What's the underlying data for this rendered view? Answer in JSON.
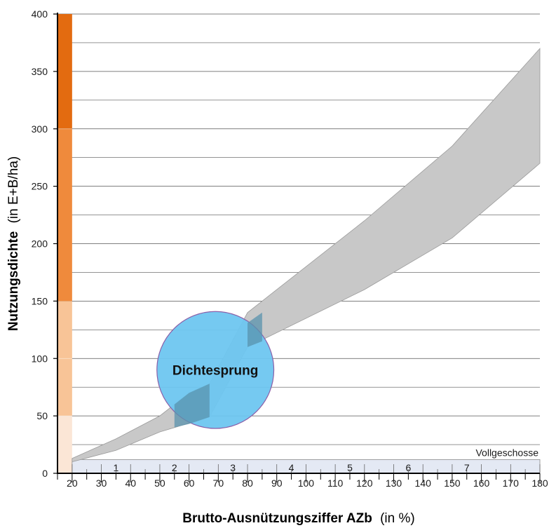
{
  "chart_data": {
    "type": "area",
    "title": "",
    "xlabel": {
      "bold": "Brutto-Ausnützungsziffer AZb",
      "unit": "(in %)"
    },
    "ylabel": {
      "bold": "Nutzungsdichte",
      "unit": "(in E+B/ha)"
    },
    "xlim": [
      15,
      180
    ],
    "ylim": [
      0,
      400
    ],
    "x_ticks": [
      20,
      30,
      40,
      50,
      60,
      70,
      80,
      90,
      100,
      110,
      120,
      130,
      140,
      150,
      160,
      170,
      180
    ],
    "y_ticks": [
      0,
      50,
      100,
      150,
      200,
      250,
      300,
      350,
      400
    ],
    "grid": true,
    "band": {
      "lower": [
        [
          20,
          10
        ],
        [
          35,
          20
        ],
        [
          50,
          36
        ],
        [
          67,
          49
        ],
        [
          80,
          110
        ],
        [
          120,
          160
        ],
        [
          150,
          205
        ],
        [
          180,
          270
        ]
      ],
      "upper": [
        [
          20,
          13
        ],
        [
          35,
          30
        ],
        [
          50,
          50
        ],
        [
          60,
          70
        ],
        [
          67,
          78
        ],
        [
          80,
          140
        ],
        [
          120,
          220
        ],
        [
          150,
          285
        ],
        [
          180,
          370
        ]
      ]
    },
    "density_scale": {
      "x_range": [
        15,
        20
      ],
      "segments": [
        {
          "from": 0,
          "to": 50,
          "color": "#fbe6d6"
        },
        {
          "from": 50,
          "to": 150,
          "color": "#f8c497"
        },
        {
          "from": 150,
          "to": 300,
          "color": "#ef8a3c"
        },
        {
          "from": 300,
          "to": 400,
          "color": "#e36b10"
        }
      ]
    },
    "vollgeschosse": {
      "label": "Vollgeschosse",
      "floors": [
        {
          "label": "1",
          "x": 35
        },
        {
          "label": "2",
          "x": 55
        },
        {
          "label": "3",
          "x": 75
        },
        {
          "label": "4",
          "x": 95
        },
        {
          "label": "5",
          "x": 115
        },
        {
          "label": "6",
          "x": 135
        },
        {
          "label": "7",
          "x": 155
        }
      ]
    },
    "annotation": {
      "label": "Dichtesprung",
      "center": [
        69,
        90
      ]
    },
    "colors": {
      "band": "#c8c8c8",
      "band_edge": "#9a9a9a",
      "circle": "#6ec6f0",
      "circle_stroke": "#8b5fa8",
      "floor_band": "#e4e9f4",
      "grid": "#555555"
    }
  }
}
